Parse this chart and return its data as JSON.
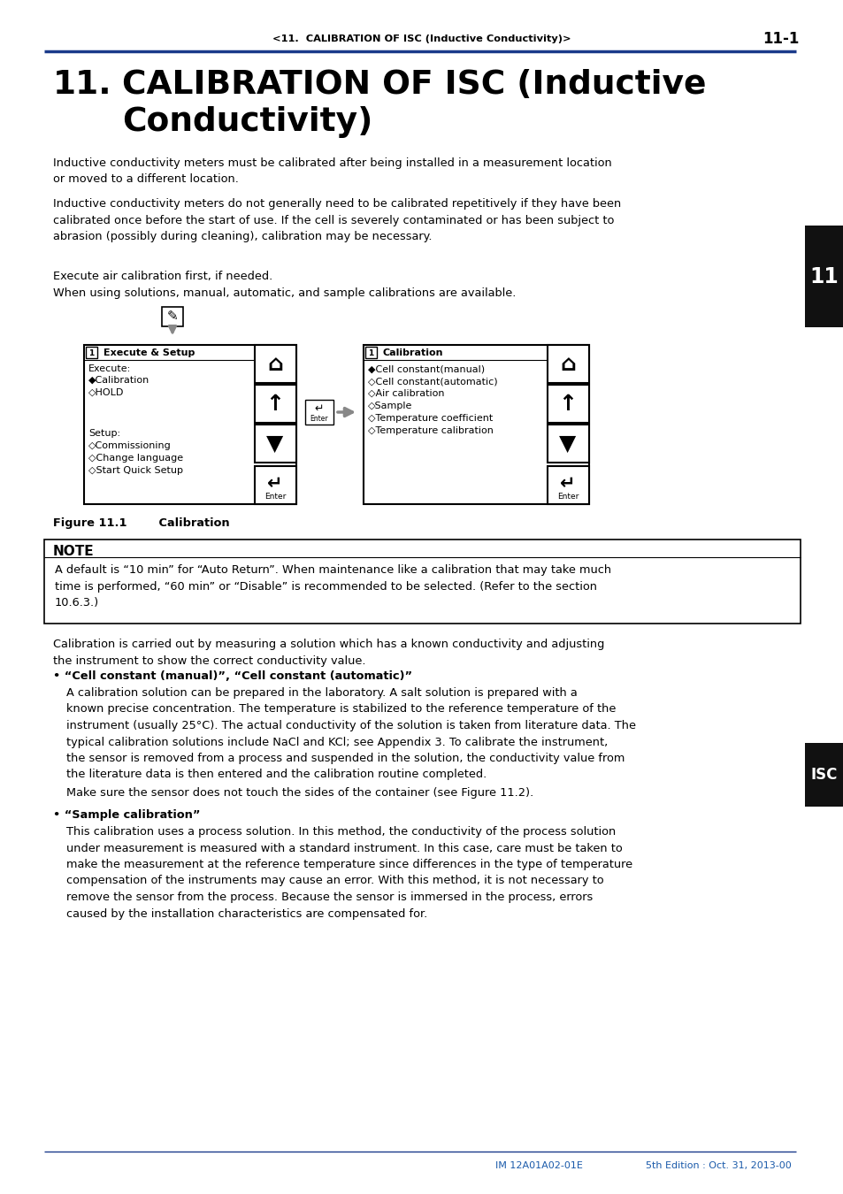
{
  "page_header": "<11.  CALIBRATION OF ISC (Inductive Conductivity)>",
  "page_number": "11-1",
  "chapter_number": "11.",
  "chapter_title": "CALIBRATION OF ISC (Inductive\nConductivity)",
  "para1": "Inductive conductivity meters must be calibrated after being installed in a measurement location\nor moved to a different location.",
  "para2": "Inductive conductivity meters do not generally need to be calibrated repetitively if they have been\ncalibrated once before the start of use. If the cell is severely contaminated or has been subject to\nabrasion (possibly during cleaning), calibration may be necessary.",
  "para3": "Execute air calibration first, if needed.",
  "para4": "When using solutions, manual, automatic, and sample calibrations are available.",
  "figure_caption": "Figure 11.1        Calibration",
  "note_title": "NOTE",
  "note_text": "A default is “10 min” for “Auto Return”. When maintenance like a calibration that may take much\ntime is performed, “60 min” or “Disable” is recommended to be selected. (Refer to the section\n10.6.3.)",
  "para5": "Calibration is carried out by measuring a solution which has a known conductivity and adjusting\nthe instrument to show the correct conductivity value.",
  "bullet1_title": "• “Cell constant (manual)”, “Cell constant (automatic)”",
  "bullet1_text": "A calibration solution can be prepared in the laboratory. A salt solution is prepared with a\nknown precise concentration. The temperature is stabilized to the reference temperature of the\ninstrument (usually 25°C). The actual conductivity of the solution is taken from literature data. The\ntypical calibration solutions include NaCl and KCl; see Appendix 3. To calibrate the instrument,\nthe sensor is removed from a process and suspended in the solution, the conductivity value from\nthe literature data is then entered and the calibration routine completed.",
  "para6": "Make sure the sensor does not touch the sides of the container (see Figure 11.2).",
  "bullet2_title": "• “Sample calibration”",
  "bullet2_text": "This calibration uses a process solution. In this method, the conductivity of the process solution\nunder measurement is measured with a standard instrument. In this case, care must be taken to\nmake the measurement at the reference temperature since differences in the type of temperature\ncompensation of the instruments may cause an error. With this method, it is not necessary to\nremove the sensor from the process. Because the sensor is immersed in the process, errors\ncaused by the installation characteristics are compensated for.",
  "footer_text_left": "IM 12A01A02-01E",
  "footer_text_right": "5th Edition : Oct. 31, 2013-00",
  "sidebar_11": "11",
  "sidebar_isc": "ISC",
  "header_line_color": "#1a3a8a",
  "footer_line_color": "#1a3a8a",
  "footer_text_color": "#1a5aaa",
  "sidebar_bg": "#111111",
  "sidebar_text_color": "#ffffff",
  "body_color": "#000000",
  "bg_color": "#ffffff"
}
